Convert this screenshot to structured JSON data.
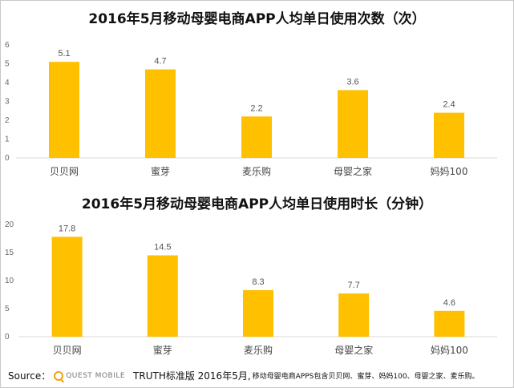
{
  "chart_data": [
    {
      "type": "bar",
      "title": "2016年5月移动母婴电商APP人均单日使用次数（次）",
      "categories": [
        "贝贝网",
        "蜜芽",
        "麦乐购",
        "母婴之家",
        "妈妈100"
      ],
      "values": [
        5.1,
        4.7,
        2.2,
        3.6,
        2.4
      ],
      "value_labels": [
        "5.1",
        "4.7",
        "2.2",
        "3.6",
        "2.4"
      ],
      "yticks": [
        "0",
        "1",
        "2",
        "3",
        "4",
        "5",
        "6"
      ],
      "ylim": [
        0,
        6
      ],
      "grid": false,
      "bar_color": "#FFC000"
    },
    {
      "type": "bar",
      "title": "2016年5月移动母婴电商APP人均单日使用时长（分钟）",
      "categories": [
        "贝贝网",
        "蜜芽",
        "麦乐购",
        "母婴之家",
        "妈妈100"
      ],
      "values": [
        17.8,
        14.5,
        8.3,
        7.7,
        4.6
      ],
      "value_labels": [
        "17.8",
        "14.5",
        "8.3",
        "7.7",
        "4.6"
      ],
      "yticks": [
        "0",
        "5",
        "10",
        "15",
        "20"
      ],
      "ylim": [
        0,
        20
      ],
      "grid": false,
      "bar_color": "#FFC000"
    }
  ],
  "footer": {
    "source_label": "Source：",
    "logo_text": "QUEST MOBILE",
    "note_main": "TRUTH标准版 2016年5月,",
    "note_small": "移动母婴电商APPS包含贝贝网、蜜芽、妈妈100、母婴之家、麦乐购。"
  },
  "colors": {
    "logo_accent": "#F2A20C",
    "axis": "#D9D9D9"
  }
}
